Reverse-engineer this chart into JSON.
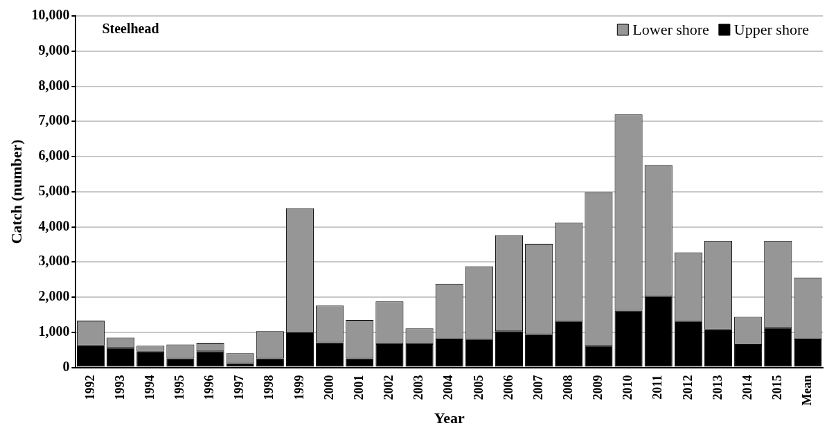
{
  "chart_data": {
    "type": "bar",
    "title": "Steelhead",
    "xlabel": "Year",
    "ylabel": "Catch (number)",
    "categories": [
      "1992",
      "1993",
      "1994",
      "1995",
      "1996",
      "1997",
      "1998",
      "1999",
      "2000",
      "2001",
      "2002",
      "2003",
      "2004",
      "2005",
      "2006",
      "2007",
      "2008",
      "2009",
      "2010",
      "2011",
      "2012",
      "2013",
      "2014",
      "2015",
      "Mean"
    ],
    "stacked": true,
    "series": [
      {
        "name": "Upper shore",
        "color": "#000000",
        "values": [
          630,
          560,
          450,
          260,
          460,
          120,
          260,
          1000,
          710,
          260,
          660,
          660,
          800,
          810,
          1030,
          950,
          1320,
          620,
          1620,
          2030,
          1320,
          1080,
          640,
          1130,
          800
        ]
      },
      {
        "name": "Lower shore",
        "color": "#969696",
        "values": [
          700,
          290,
          170,
          390,
          240,
          280,
          770,
          3530,
          1050,
          1090,
          1220,
          450,
          1580,
          2070,
          2730,
          2570,
          2800,
          4360,
          5580,
          3730,
          1950,
          2520,
          800,
          2470,
          1760
        ]
      }
    ],
    "ylim": [
      0,
      10000
    ],
    "yticks": [
      0,
      {
        "value": 1000,
        "label": "1,000"
      },
      {
        "value": 2000,
        "label": "2,000"
      },
      {
        "value": 3000,
        "label": "3,000"
      },
      {
        "value": 4000,
        "label": "4,000"
      },
      {
        "value": 5000,
        "label": "5,000"
      },
      {
        "value": 6000,
        "label": "6,000"
      },
      {
        "value": 7000,
        "label": "7,000"
      },
      {
        "value": 8000,
        "label": "8,000"
      },
      {
        "value": 9000,
        "label": "9,000"
      },
      {
        "value": 10000,
        "label": "10,000"
      }
    ],
    "grid": "y",
    "legend": "top right"
  }
}
